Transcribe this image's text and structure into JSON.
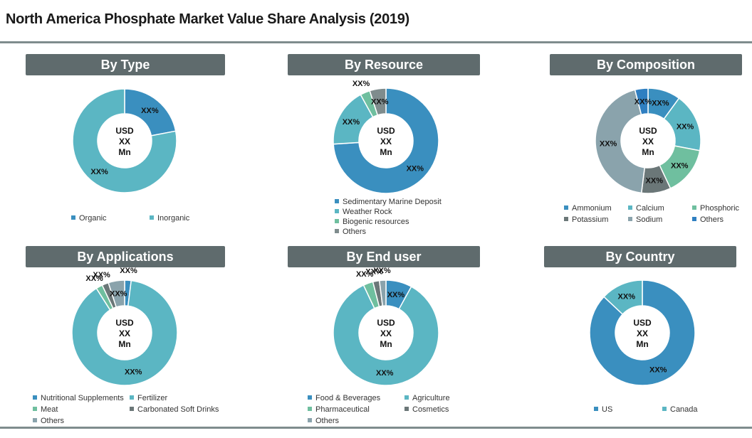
{
  "title": "North America Phosphate Market Value Share Analysis (2019)",
  "colors": {
    "header_bg": "#5f6b6d",
    "rule": "#7f8c8d"
  },
  "chart_data": [
    {
      "type": "pie",
      "title": "By Type",
      "center": [
        "USD",
        "XX",
        "Mn"
      ],
      "slices": [
        {
          "label": "Organic",
          "value": 22,
          "color": "#3a8fbf",
          "text": "XX%"
        },
        {
          "label": "Inorganic",
          "value": 78,
          "color": "#5bb6c3",
          "text": "XX%"
        }
      ],
      "legend_cols": 2
    },
    {
      "type": "pie",
      "title": "By Resource",
      "center": [
        "USD",
        "XX",
        "Mn"
      ],
      "slices": [
        {
          "label": "Sedimentary Marine Deposit",
          "value": 74,
          "color": "#3a8fbf",
          "text": "XX%"
        },
        {
          "label": "Weather Rock",
          "value": 18,
          "color": "#5bb6c3",
          "text": "XX%"
        },
        {
          "label": "Biogenic resources",
          "value": 3,
          "color": "#6fbf9f",
          "text": "XX%"
        },
        {
          "label": "Others",
          "value": 5,
          "color": "#7f8c8d",
          "text": "XX%"
        }
      ],
      "legend_cols": 1
    },
    {
      "type": "pie",
      "title": "By Composition",
      "center": [
        "USD",
        "XX",
        "Mn"
      ],
      "slices": [
        {
          "label": "Ammonium",
          "value": 10,
          "color": "#3a8fbf",
          "text": "XX%"
        },
        {
          "label": "Calcium",
          "value": 18,
          "color": "#5bb6c3",
          "text": "XX%"
        },
        {
          "label": "Phosphoric",
          "value": 15,
          "color": "#6fbf9f",
          "text": "XX%"
        },
        {
          "label": "Potassium",
          "value": 9,
          "color": "#6b7778",
          "text": "XX%"
        },
        {
          "label": "Sodium",
          "value": 44,
          "color": "#8aa3ac",
          "text": "XX%"
        },
        {
          "label": "Others",
          "value": 4,
          "color": "#2f7fc1",
          "text": "XX%"
        }
      ],
      "legend_cols": 3
    },
    {
      "type": "pie",
      "title": "By Applications",
      "center": [
        "USD",
        "XX",
        "Mn"
      ],
      "slices": [
        {
          "label": "Nutritional Supplements",
          "value": 2,
          "color": "#3a8fbf",
          "text": "XX%"
        },
        {
          "label": "Fertilizer",
          "value": 89,
          "color": "#5bb6c3",
          "text": "XX%"
        },
        {
          "label": "Meat",
          "value": 2,
          "color": "#6fbf9f",
          "text": "XX%"
        },
        {
          "label": "Carbonated Soft Drinks",
          "value": 2,
          "color": "#6b7778",
          "text": "XX%"
        },
        {
          "label": "Others",
          "value": 5,
          "color": "#8aa3ac",
          "text": "XX%"
        }
      ],
      "legend_cols": 2
    },
    {
      "type": "pie",
      "title": "By End user",
      "center": [
        "USD",
        "XX",
        "Mn"
      ],
      "slices": [
        {
          "label": "Food & Beverages",
          "value": 8,
          "color": "#3a8fbf",
          "text": "XX%"
        },
        {
          "label": "Agriculture",
          "value": 85,
          "color": "#5bb6c3",
          "text": "XX%"
        },
        {
          "label": "Pharmaceutical",
          "value": 3,
          "color": "#6fbf9f",
          "text": "XX%"
        },
        {
          "label": "Cosmetics",
          "value": 2,
          "color": "#6b7778",
          "text": "XX%"
        },
        {
          "label": "Others",
          "value": 2,
          "color": "#8aa3ac",
          "text": "XX%"
        }
      ],
      "legend_cols": 2
    },
    {
      "type": "pie",
      "title": "By Country",
      "center": [
        "USD",
        "XX",
        "Mn"
      ],
      "slices": [
        {
          "label": "US",
          "value": 87,
          "color": "#3a8fbf",
          "text": "XX%"
        },
        {
          "label": "Canada",
          "value": 13,
          "color": "#5bb6c3",
          "text": "XX%"
        }
      ],
      "legend_cols": 2
    }
  ]
}
